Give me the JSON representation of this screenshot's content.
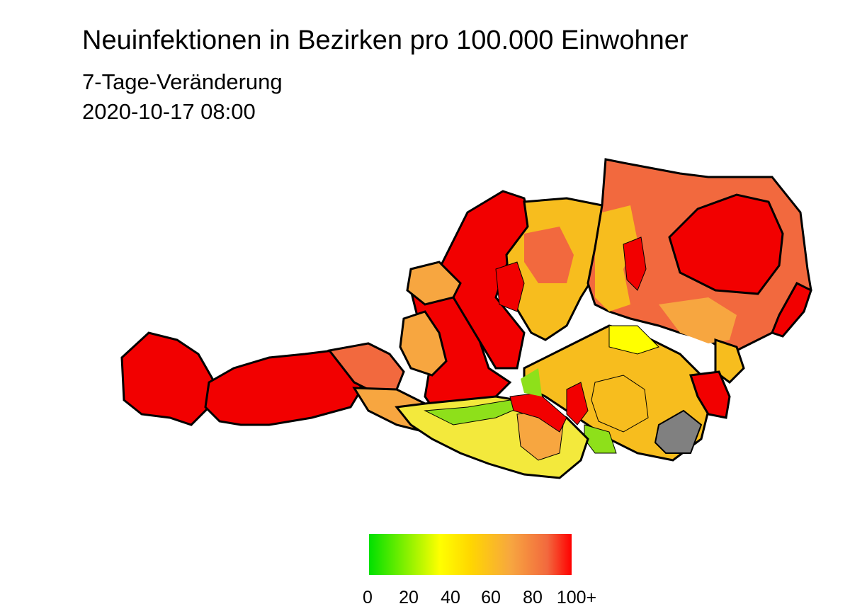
{
  "header": {
    "title": "Neuinfektionen in Bezirken pro 100.000 Einwohner",
    "subtitle": "7-Tage-Veränderung",
    "timestamp": "2020-10-17 08:00"
  },
  "legend": {
    "type": "continuous color scale",
    "range": [
      0,
      100
    ],
    "ticks": [
      "0",
      "20",
      "40",
      "60",
      "80",
      "100+"
    ],
    "colors": {
      "low": "#00e000",
      "mid": "#ffff00",
      "high": "#ff0000",
      "no_data": "#808080"
    }
  },
  "map": {
    "region": "Austria districts (cartogram)",
    "colors": {
      "red": "#f20000",
      "tomato": "#f2693e",
      "orange": "#f7a640",
      "gold": "#f7bd1e",
      "yellow": "#ffff00",
      "light-yellow": "#f3e93c",
      "green": "#8ee01a",
      "grey": "#808080",
      "border": "#000000"
    }
  }
}
